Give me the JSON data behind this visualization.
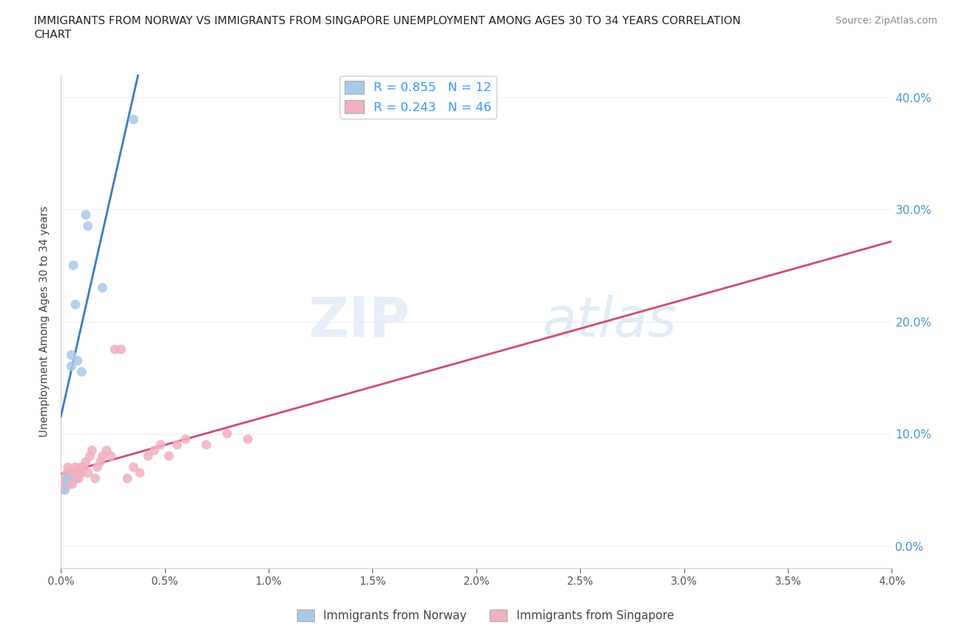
{
  "title": "IMMIGRANTS FROM NORWAY VS IMMIGRANTS FROM SINGAPORE UNEMPLOYMENT AMONG AGES 30 TO 34 YEARS CORRELATION\nCHART",
  "source": "Source: ZipAtlas.com",
  "ylabel": "Unemployment Among Ages 30 to 34 years",
  "norway_R": 0.855,
  "norway_N": 12,
  "singapore_R": 0.243,
  "singapore_N": 46,
  "norway_color": "#a8c8e8",
  "norway_line_color": "#3a7fc1",
  "singapore_color": "#f0b0c0",
  "singapore_line_color": "#d05070",
  "background_color": "#ffffff",
  "grid_color": "#e8e8e8",
  "xlim": [
    0.0,
    0.04
  ],
  "ylim": [
    -0.02,
    0.42
  ],
  "norway_x": [
    0.0002,
    0.0003,
    0.0005,
    0.0005,
    0.0006,
    0.0007,
    0.0008,
    0.001,
    0.0012,
    0.0013,
    0.002,
    0.0035
  ],
  "norway_y": [
    0.05,
    0.06,
    0.16,
    0.17,
    0.25,
    0.215,
    0.165,
    0.155,
    0.295,
    0.285,
    0.23,
    0.38
  ],
  "singapore_x": [
    5e-05,
    0.0001,
    0.00012,
    0.00015,
    0.0002,
    0.00025,
    0.0003,
    0.00035,
    0.0004,
    0.00045,
    0.0005,
    0.00055,
    0.0006,
    0.00065,
    0.0007,
    0.00075,
    0.0008,
    0.00085,
    0.0009,
    0.00095,
    0.001,
    0.0011,
    0.0012,
    0.0013,
    0.0014,
    0.0015,
    0.00165,
    0.00175,
    0.0019,
    0.002,
    0.0022,
    0.0024,
    0.0026,
    0.0029,
    0.0032,
    0.0035,
    0.0038,
    0.0042,
    0.0045,
    0.0048,
    0.0052,
    0.0056,
    0.006,
    0.007,
    0.008,
    0.009
  ],
  "singapore_y": [
    0.05,
    0.055,
    0.06,
    0.05,
    0.055,
    0.06,
    0.065,
    0.07,
    0.055,
    0.06,
    0.065,
    0.055,
    0.06,
    0.065,
    0.07,
    0.06,
    0.065,
    0.06,
    0.065,
    0.07,
    0.065,
    0.07,
    0.075,
    0.065,
    0.08,
    0.085,
    0.06,
    0.07,
    0.075,
    0.08,
    0.085,
    0.08,
    0.175,
    0.175,
    0.06,
    0.07,
    0.065,
    0.08,
    0.085,
    0.09,
    0.08,
    0.09,
    0.095,
    0.09,
    0.1,
    0.095
  ],
  "watermark_zip": "ZIP",
  "watermark_atlas": "atlas",
  "marker_size": 100,
  "legend_color": "#3399ff"
}
